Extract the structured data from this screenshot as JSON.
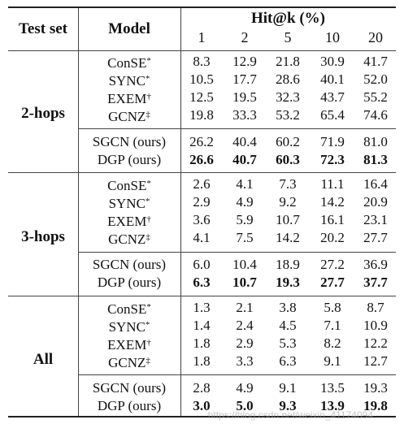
{
  "header": {
    "test_set": "Test set",
    "model": "Model",
    "metric": "Hit@k (%)",
    "k_values": [
      "1",
      "2",
      "5",
      "10",
      "20"
    ]
  },
  "groups": [
    {
      "name": "2-hops",
      "rows": [
        {
          "model": "ConSE",
          "mark": "*",
          "values": [
            "8.3",
            "12.9",
            "21.8",
            "30.9",
            "41.7"
          ],
          "bold": false
        },
        {
          "model": "SYNC",
          "mark": "*",
          "values": [
            "10.5",
            "17.7",
            "28.6",
            "40.1",
            "52.0"
          ],
          "bold": false
        },
        {
          "model": "EXEM",
          "mark": "†",
          "values": [
            "12.5",
            "19.5",
            "32.3",
            "43.7",
            "55.2"
          ],
          "bold": false
        },
        {
          "model": "GCNZ",
          "mark": "‡",
          "values": [
            "19.8",
            "33.3",
            "53.2",
            "65.4",
            "74.6"
          ],
          "bold": false
        },
        {
          "model": "SGCN (ours)",
          "mark": "",
          "values": [
            "26.2",
            "40.4",
            "60.2",
            "71.9",
            "81.0"
          ],
          "bold": false
        },
        {
          "model": "DGP (ours)",
          "mark": "",
          "values": [
            "26.6",
            "40.7",
            "60.3",
            "72.3",
            "81.3"
          ],
          "bold": true
        }
      ]
    },
    {
      "name": "3-hops",
      "rows": [
        {
          "model": "ConSE",
          "mark": "*",
          "values": [
            "2.6",
            "4.1",
            "7.3",
            "11.1",
            "16.4"
          ],
          "bold": false
        },
        {
          "model": "SYNC",
          "mark": "*",
          "values": [
            "2.9",
            "4.9",
            "9.2",
            "14.2",
            "20.9"
          ],
          "bold": false
        },
        {
          "model": "EXEM",
          "mark": "†",
          "values": [
            "3.6",
            "5.9",
            "10.7",
            "16.1",
            "23.1"
          ],
          "bold": false
        },
        {
          "model": "GCNZ",
          "mark": "‡",
          "values": [
            "4.1",
            "7.5",
            "14.2",
            "20.2",
            "27.7"
          ],
          "bold": false
        },
        {
          "model": "SGCN (ours)",
          "mark": "",
          "values": [
            "6.0",
            "10.4",
            "18.9",
            "27.2",
            "36.9"
          ],
          "bold": false
        },
        {
          "model": "DGP (ours)",
          "mark": "",
          "values": [
            "6.3",
            "10.7",
            "19.3",
            "27.7",
            "37.7"
          ],
          "bold": true
        }
      ]
    },
    {
      "name": "All",
      "rows": [
        {
          "model": "ConSE",
          "mark": "*",
          "values": [
            "1.3",
            "2.1",
            "3.8",
            "5.8",
            "8.7"
          ],
          "bold": false
        },
        {
          "model": "SYNC",
          "mark": "*",
          "values": [
            "1.4",
            "2.4",
            "4.5",
            "7.1",
            "10.9"
          ],
          "bold": false
        },
        {
          "model": "EXEM",
          "mark": "†",
          "values": [
            "1.8",
            "2.9",
            "5.3",
            "8.2",
            "12.2"
          ],
          "bold": false
        },
        {
          "model": "GCNZ",
          "mark": "‡",
          "values": [
            "1.8",
            "3.3",
            "6.3",
            "9.1",
            "12.7"
          ],
          "bold": false
        },
        {
          "model": "SGCN (ours)",
          "mark": "",
          "values": [
            "2.8",
            "4.9",
            "9.1",
            "13.5",
            "19.3"
          ],
          "bold": false
        },
        {
          "model": "DGP (ours)",
          "mark": "",
          "values": [
            "3.0",
            "5.0",
            "9.3",
            "13.9",
            "19.8"
          ],
          "bold": true
        }
      ]
    }
  ],
  "watermark": "https://blog.csdn.net/weixin_41174094"
}
